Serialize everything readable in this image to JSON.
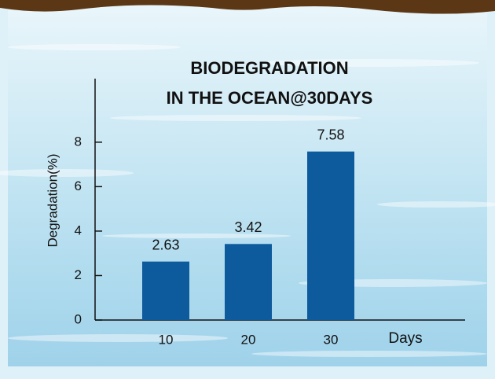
{
  "chart_data": {
    "type": "bar",
    "title": [
      "BIODEGRADATION",
      "IN THE OCEAN@30DAYS"
    ],
    "y_label": "Degradation(%)",
    "x_label": "Days",
    "categories": [
      "10",
      "20",
      "30"
    ],
    "values": [
      2.63,
      3.42,
      7.58
    ],
    "color": "#0d5a9c",
    "ylim": [
      0,
      11
    ],
    "yticks": [
      0,
      2,
      4,
      6,
      8
    ]
  }
}
